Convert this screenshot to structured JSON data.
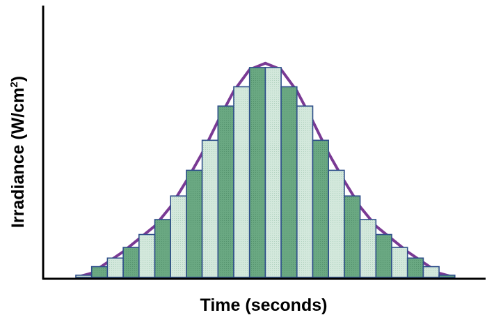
{
  "chart_data": {
    "type": "bar",
    "title": "",
    "xlabel": "Time (seconds)",
    "ylabel_main": "Irradiance (W/cm",
    "ylabel_sup": "2",
    "ylabel_close": ")",
    "grid": false,
    "legend": "none",
    "series": [
      {
        "values": [
          0.01,
          0.05,
          0.09,
          0.14,
          0.2,
          0.27,
          0.38,
          0.5,
          0.64,
          0.8,
          0.89,
          0.98,
          0.98,
          0.89,
          0.8,
          0.64,
          0.5,
          0.38,
          0.27,
          0.2,
          0.14,
          0.09,
          0.05,
          0.01
        ]
      }
    ],
    "curve_values": [
      0.0,
      0.02,
      0.07,
      0.12,
      0.18,
      0.24,
      0.33,
      0.45,
      0.58,
      0.73,
      0.87,
      0.97,
      1.0,
      0.97,
      0.87,
      0.73,
      0.58,
      0.45,
      0.33,
      0.24,
      0.18,
      0.12,
      0.07,
      0.02,
      0.0
    ],
    "ylim": [
      0,
      1.1
    ],
    "colors": {
      "bar_dark": "#6aa882",
      "bar_light": "#cfe6da",
      "bar_stroke": "#2f4f8a",
      "curve": "#7a3a94",
      "axis": "#000000"
    }
  }
}
